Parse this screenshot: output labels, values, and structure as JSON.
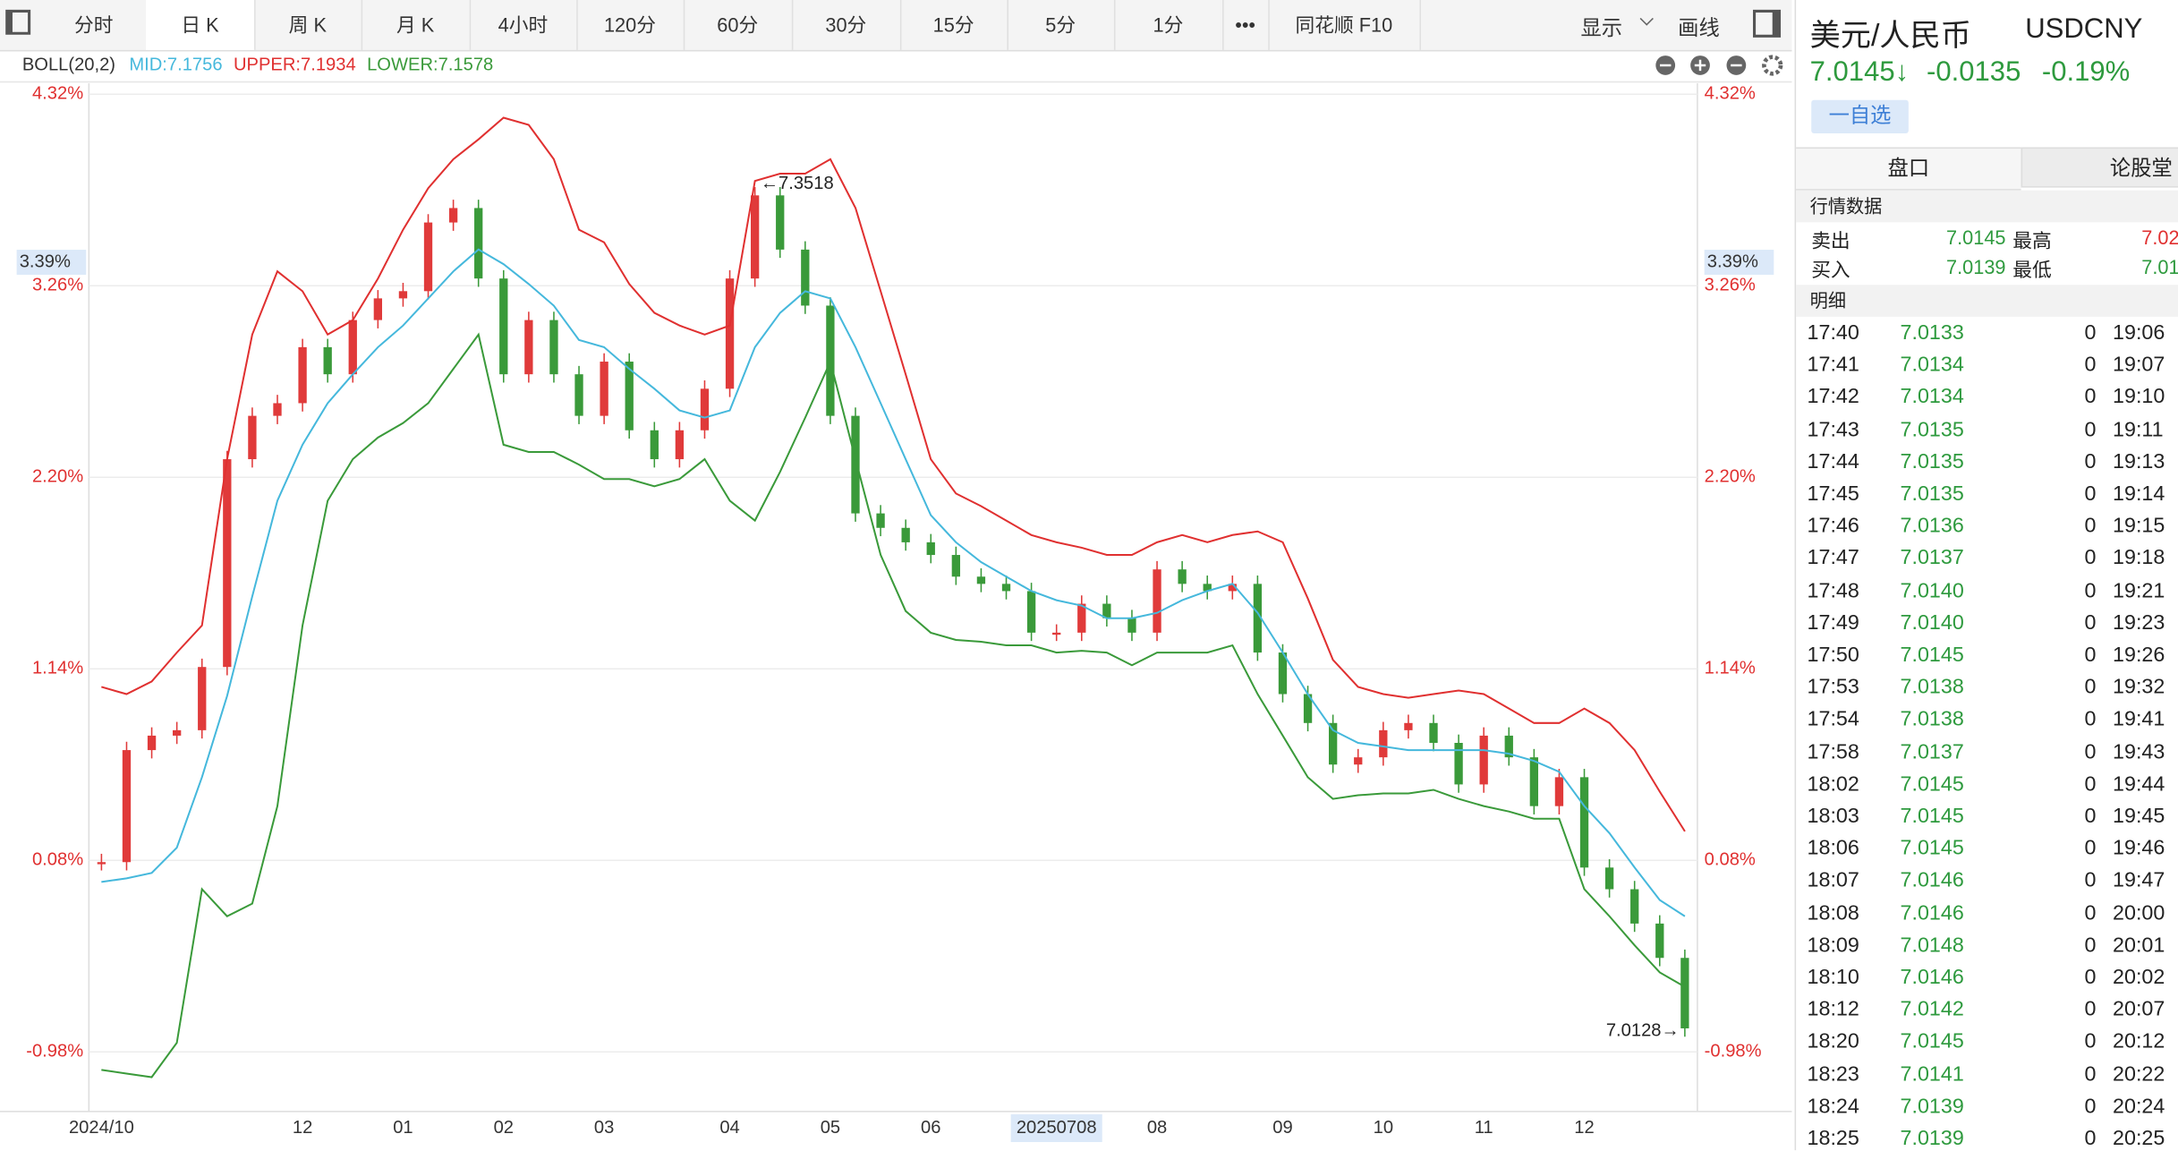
{
  "toolbar": {
    "tabs": [
      "分时",
      "日 K",
      "周 K",
      "月 K",
      "4小时",
      "120分",
      "60分",
      "30分",
      "15分",
      "5分",
      "1分",
      "•••",
      "同花顺 F10"
    ],
    "right": [
      "显示",
      "画线"
    ]
  },
  "chart_data": {
    "type": "candlestick-boll",
    "indicator": "BOLL(20,2)",
    "categories": [
      "2024/10",
      null,
      null,
      null,
      null,
      null,
      null,
      null,
      "12",
      null,
      null,
      null,
      "01",
      null,
      null,
      null,
      "02",
      null,
      null,
      null,
      "03",
      null,
      null,
      null,
      null,
      "04",
      null,
      null,
      null,
      "05",
      null,
      null,
      null,
      "06",
      null,
      null,
      null,
      null,
      "20250708",
      null,
      null,
      null,
      "08",
      null,
      null,
      null,
      null,
      "09",
      null,
      null,
      null,
      "10",
      null,
      null,
      null,
      "11",
      null,
      null,
      null,
      "12",
      null,
      null,
      null,
      null
    ],
    "candles": {
      "color_up": "#e03a3a",
      "color_down": "#3a9a3a",
      "values": [
        0.07,
        0.69,
        0.77,
        0.8,
        1.15,
        2.3,
        2.54,
        2.61,
        2.92,
        2.77,
        3.07,
        3.19,
        3.23,
        3.61,
        3.69,
        3.3,
        2.77,
        3.07,
        2.77,
        2.54,
        2.84,
        2.46,
        2.3,
        2.46,
        2.69,
        3.3,
        3.76,
        3.46,
        3.15,
        2.54,
        2.0,
        1.92,
        1.84,
        1.77,
        1.65,
        1.61,
        1.57,
        1.34,
        1.34,
        1.5,
        1.42,
        1.34,
        1.69,
        1.61,
        1.57,
        1.61,
        1.23,
        1.0,
        0.84,
        0.61,
        0.65,
        0.8,
        0.84,
        0.73,
        0.5,
        0.77,
        0.65,
        0.38,
        0.54,
        0.04,
        -0.08,
        -0.27,
        -0.46,
        -0.85
      ]
    },
    "series": [
      {
        "name": "MID:7.1756",
        "color": "#45b8dc",
        "values": [
          -0.04,
          -0.02,
          0.01,
          0.15,
          0.54,
          0.99,
          1.54,
          2.07,
          2.38,
          2.61,
          2.77,
          2.92,
          3.04,
          3.19,
          3.34,
          3.46,
          3.38,
          3.27,
          3.15,
          2.96,
          2.92,
          2.8,
          2.69,
          2.57,
          2.53,
          2.57,
          2.92,
          3.11,
          3.23,
          3.19,
          2.92,
          2.61,
          2.3,
          1.99,
          1.84,
          1.73,
          1.65,
          1.57,
          1.52,
          1.49,
          1.42,
          1.42,
          1.45,
          1.52,
          1.57,
          1.61,
          1.45,
          1.23,
          1.0,
          0.8,
          0.73,
          0.71,
          0.69,
          0.69,
          0.69,
          0.69,
          0.67,
          0.63,
          0.57,
          0.38,
          0.23,
          0.04,
          -0.14,
          -0.23
        ]
      },
      {
        "name": "UPPER:7.1934",
        "color": "#e03030",
        "values": [
          1.04,
          1.0,
          1.07,
          1.23,
          1.38,
          2.3,
          2.99,
          3.34,
          3.23,
          2.99,
          3.07,
          3.3,
          3.57,
          3.8,
          3.96,
          4.07,
          4.19,
          4.15,
          3.96,
          3.57,
          3.5,
          3.27,
          3.11,
          3.04,
          2.99,
          3.04,
          3.84,
          3.88,
          3.88,
          3.96,
          3.69,
          3.23,
          2.77,
          2.3,
          2.11,
          2.04,
          1.96,
          1.88,
          1.84,
          1.81,
          1.77,
          1.77,
          1.84,
          1.88,
          1.84,
          1.88,
          1.9,
          1.84,
          1.53,
          1.19,
          1.04,
          1.0,
          0.98,
          1.0,
          1.02,
          1.0,
          0.92,
          0.84,
          0.84,
          0.92,
          0.84,
          0.69,
          0.46,
          0.24
        ]
      },
      {
        "name": "LOWER:7.1578",
        "color": "#3a9a3a",
        "values": [
          -1.08,
          -1.1,
          -1.12,
          -0.93,
          -0.08,
          -0.23,
          -0.16,
          0.38,
          1.38,
          2.07,
          2.3,
          2.42,
          2.5,
          2.61,
          2.8,
          2.99,
          2.38,
          2.34,
          2.34,
          2.27,
          2.19,
          2.19,
          2.15,
          2.19,
          2.3,
          2.07,
          1.96,
          2.23,
          2.53,
          2.84,
          2.3,
          1.77,
          1.46,
          1.34,
          1.3,
          1.29,
          1.27,
          1.27,
          1.23,
          1.24,
          1.23,
          1.16,
          1.23,
          1.23,
          1.23,
          1.27,
          1.0,
          0.77,
          0.54,
          0.42,
          0.44,
          0.45,
          0.45,
          0.47,
          0.42,
          0.38,
          0.35,
          0.31,
          0.31,
          -0.08,
          -0.23,
          -0.39,
          -0.54,
          -0.62
        ]
      }
    ],
    "ylim": [
      -1.31,
      4.38
    ],
    "yticks": [
      {
        "value": 4.32,
        "label": "4.32%"
      },
      {
        "value": 3.26,
        "label": "3.26%"
      },
      {
        "value": 2.2,
        "label": "2.20%"
      },
      {
        "value": 1.14,
        "label": "1.14%"
      },
      {
        "value": 0.08,
        "label": "0.08%"
      },
      {
        "value": -0.98,
        "label": "-0.98%"
      }
    ],
    "crosshair_y": {
      "value": 3.39,
      "label": "3.39%"
    },
    "max_label": "←7.3518",
    "last_label": "7.0128→",
    "grid": true
  },
  "quote": {
    "name": "美元/人民币",
    "code": "USDCNY",
    "price": "7.0145↓",
    "change": "-0.0135",
    "change_pct": "-0.19%",
    "watch_button": "一自选",
    "tabs": [
      "盘口",
      "论股堂"
    ],
    "market_title": "行情数据",
    "market_rows": [
      [
        "卖出",
        "7.0145",
        "最高",
        "7.02"
      ],
      [
        "买入",
        "7.0139",
        "最低",
        "7.01"
      ]
    ],
    "detail_title": "明细",
    "details": [
      [
        "17:40",
        "7.0133",
        "0",
        "19:06"
      ],
      [
        "17:41",
        "7.0134",
        "0",
        "19:07"
      ],
      [
        "17:42",
        "7.0134",
        "0",
        "19:10"
      ],
      [
        "17:43",
        "7.0135",
        "0",
        "19:11"
      ],
      [
        "17:44",
        "7.0135",
        "0",
        "19:13"
      ],
      [
        "17:45",
        "7.0135",
        "0",
        "19:14"
      ],
      [
        "17:46",
        "7.0136",
        "0",
        "19:15"
      ],
      [
        "17:47",
        "7.0137",
        "0",
        "19:18"
      ],
      [
        "17:48",
        "7.0140",
        "0",
        "19:21"
      ],
      [
        "17:49",
        "7.0140",
        "0",
        "19:23"
      ],
      [
        "17:50",
        "7.0145",
        "0",
        "19:26"
      ],
      [
        "17:53",
        "7.0138",
        "0",
        "19:32"
      ],
      [
        "17:54",
        "7.0138",
        "0",
        "19:41"
      ],
      [
        "17:58",
        "7.0137",
        "0",
        "19:43"
      ],
      [
        "18:02",
        "7.0145",
        "0",
        "19:44"
      ],
      [
        "18:03",
        "7.0145",
        "0",
        "19:45"
      ],
      [
        "18:06",
        "7.0145",
        "0",
        "19:46"
      ],
      [
        "18:07",
        "7.0146",
        "0",
        "19:47"
      ],
      [
        "18:08",
        "7.0146",
        "0",
        "20:00"
      ],
      [
        "18:09",
        "7.0148",
        "0",
        "20:01"
      ],
      [
        "18:10",
        "7.0146",
        "0",
        "20:02"
      ],
      [
        "18:12",
        "7.0142",
        "0",
        "20:07"
      ],
      [
        "18:20",
        "7.0145",
        "0",
        "20:12"
      ],
      [
        "18:23",
        "7.0141",
        "0",
        "20:22"
      ],
      [
        "18:24",
        "7.0139",
        "0",
        "20:24"
      ],
      [
        "18:25",
        "7.0139",
        "0",
        "20:25"
      ]
    ]
  }
}
